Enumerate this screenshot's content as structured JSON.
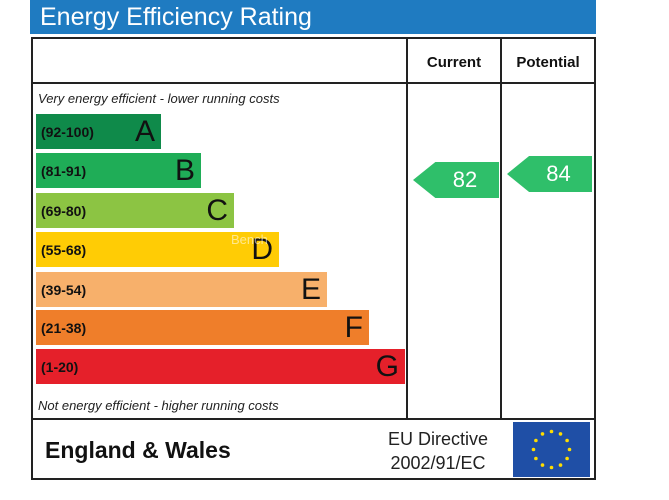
{
  "header": {
    "title": "Energy Efficiency Rating"
  },
  "columns": {
    "current": "Current",
    "potential": "Potential"
  },
  "captions": {
    "top": "Very energy efficient - lower running costs",
    "bottom": "Not energy efficient - higher running costs"
  },
  "bands": [
    {
      "range": "(92-100)",
      "letter": "A",
      "color": "#0f8a4a"
    },
    {
      "range": "(81-91)",
      "letter": "B",
      "color": "#1fad57"
    },
    {
      "range": "(69-80)",
      "letter": "C",
      "color": "#8cc443"
    },
    {
      "range": "(55-68)",
      "letter": "D",
      "color": "#ffcc05"
    },
    {
      "range": "(39-54)",
      "letter": "E",
      "color": "#f7b06b"
    },
    {
      "range": "(21-38)",
      "letter": "F",
      "color": "#ef7e2a"
    },
    {
      "range": "(1-20)",
      "letter": "G",
      "color": "#e5202a"
    }
  ],
  "ratings": {
    "current": {
      "value": "82",
      "band": "B",
      "color": "#2fbf6a"
    },
    "potential": {
      "value": "84",
      "band": "B",
      "color": "#2fbf6a"
    }
  },
  "footer": {
    "region": "England & Wales",
    "directive_line1": "EU Directive",
    "directive_line2": "2002/91/EC"
  },
  "watermark": "Bench"
}
